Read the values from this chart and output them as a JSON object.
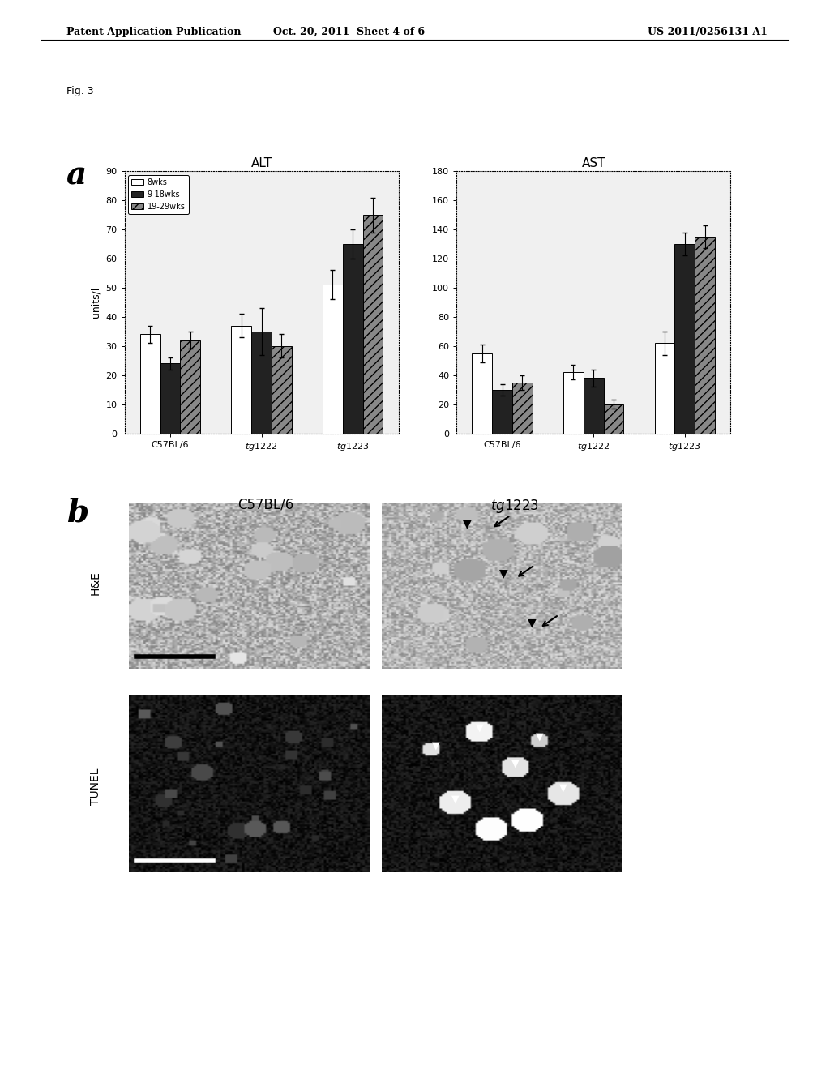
{
  "page_header_left": "Patent Application Publication",
  "page_header_center": "Oct. 20, 2011  Sheet 4 of 6",
  "page_header_right": "US 2011/0256131 A1",
  "fig_label": "Fig. 3",
  "panel_a_label": "a",
  "panel_b_label": "b",
  "alt_title": "ALT",
  "ast_title": "AST",
  "ylabel": "units/l",
  "groups": [
    "C57BL/6",
    "tg1222",
    "tg1223"
  ],
  "legend_labels": [
    "8wks",
    "9-18wks",
    "19-29wks"
  ],
  "bar_colors": [
    "white",
    "#222222",
    "#888888"
  ],
  "bar_hatches": [
    "",
    "",
    "///"
  ],
  "alt_values": [
    [
      34,
      24,
      32
    ],
    [
      37,
      35,
      30
    ],
    [
      51,
      65,
      75
    ]
  ],
  "alt_errors": [
    [
      3,
      2,
      3
    ],
    [
      4,
      8,
      4
    ],
    [
      5,
      5,
      6
    ]
  ],
  "ast_values": [
    [
      55,
      30,
      35
    ],
    [
      42,
      38,
      20
    ],
    [
      62,
      130,
      135
    ]
  ],
  "ast_errors": [
    [
      6,
      4,
      5
    ],
    [
      5,
      6,
      3
    ],
    [
      8,
      8,
      8
    ]
  ],
  "alt_ylim": [
    0,
    90
  ],
  "ast_ylim": [
    0,
    180
  ],
  "alt_yticks": [
    0,
    10,
    20,
    30,
    40,
    50,
    60,
    70,
    80,
    90
  ],
  "ast_yticks": [
    0,
    20,
    40,
    60,
    80,
    100,
    120,
    140,
    160,
    180
  ],
  "col_labels_b": [
    "C57BL/6",
    "tg1223"
  ],
  "row_labels_b": [
    "H&E",
    "TUNEL"
  ],
  "background_color": "#f5f5f5",
  "he_c57_color": "#c8c8c8",
  "he_tg_color": "#b0b0b0",
  "tunel_c57_color": "#202020",
  "tunel_tg_color": "#181818"
}
